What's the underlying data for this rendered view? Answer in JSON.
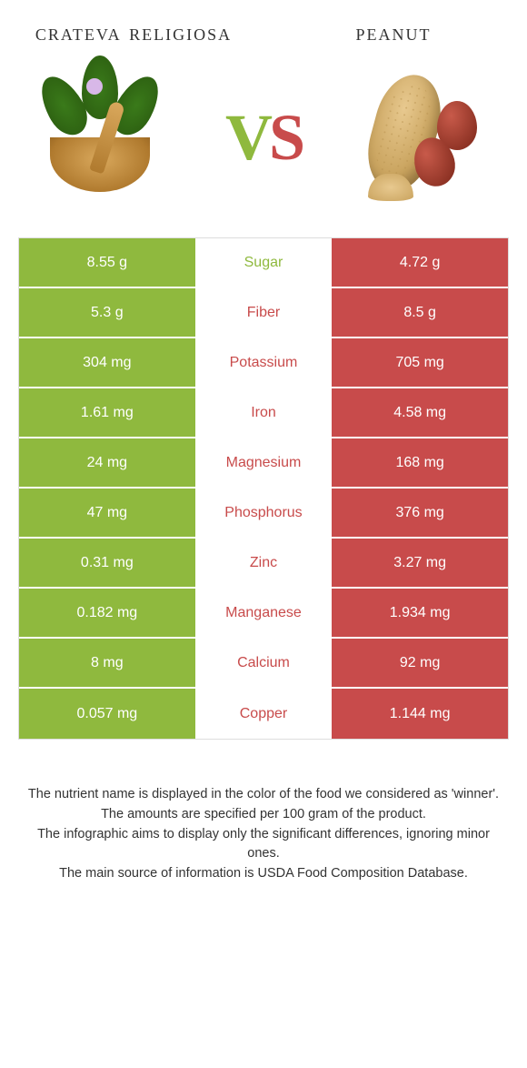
{
  "colors": {
    "left": "#8fb93e",
    "right": "#c84b4b",
    "left_dim": "#a8cc6a",
    "right_dim": "#d88080",
    "mid_text_left": "#8fb93e",
    "mid_text_right": "#c84b4b"
  },
  "header": {
    "left_title": "crateva religiosa",
    "right_title": "peanut",
    "vs_v": "V",
    "vs_s": "S"
  },
  "rows": [
    {
      "nutrient": "Sugar",
      "left": "8.55 g",
      "right": "4.72 g",
      "winner": "left"
    },
    {
      "nutrient": "Fiber",
      "left": "5.3 g",
      "right": "8.5 g",
      "winner": "right"
    },
    {
      "nutrient": "Potassium",
      "left": "304 mg",
      "right": "705 mg",
      "winner": "right"
    },
    {
      "nutrient": "Iron",
      "left": "1.61 mg",
      "right": "4.58 mg",
      "winner": "right"
    },
    {
      "nutrient": "Magnesium",
      "left": "24 mg",
      "right": "168 mg",
      "winner": "right"
    },
    {
      "nutrient": "Phosphorus",
      "left": "47 mg",
      "right": "376 mg",
      "winner": "right"
    },
    {
      "nutrient": "Zinc",
      "left": "0.31 mg",
      "right": "3.27 mg",
      "winner": "right"
    },
    {
      "nutrient": "Manganese",
      "left": "0.182 mg",
      "right": "1.934 mg",
      "winner": "right"
    },
    {
      "nutrient": "Calcium",
      "left": "8 mg",
      "right": "92 mg",
      "winner": "right"
    },
    {
      "nutrient": "Copper",
      "left": "0.057 mg",
      "right": "1.144 mg",
      "winner": "right"
    }
  ],
  "footer": {
    "line1": "The nutrient name is displayed in the color of the food we considered as 'winner'.",
    "line2": "The amounts are specified per 100 gram of the product.",
    "line3": "The infographic aims to display only the significant differences, ignoring minor ones.",
    "line4": "The main source of information is USDA Food Composition Database."
  }
}
